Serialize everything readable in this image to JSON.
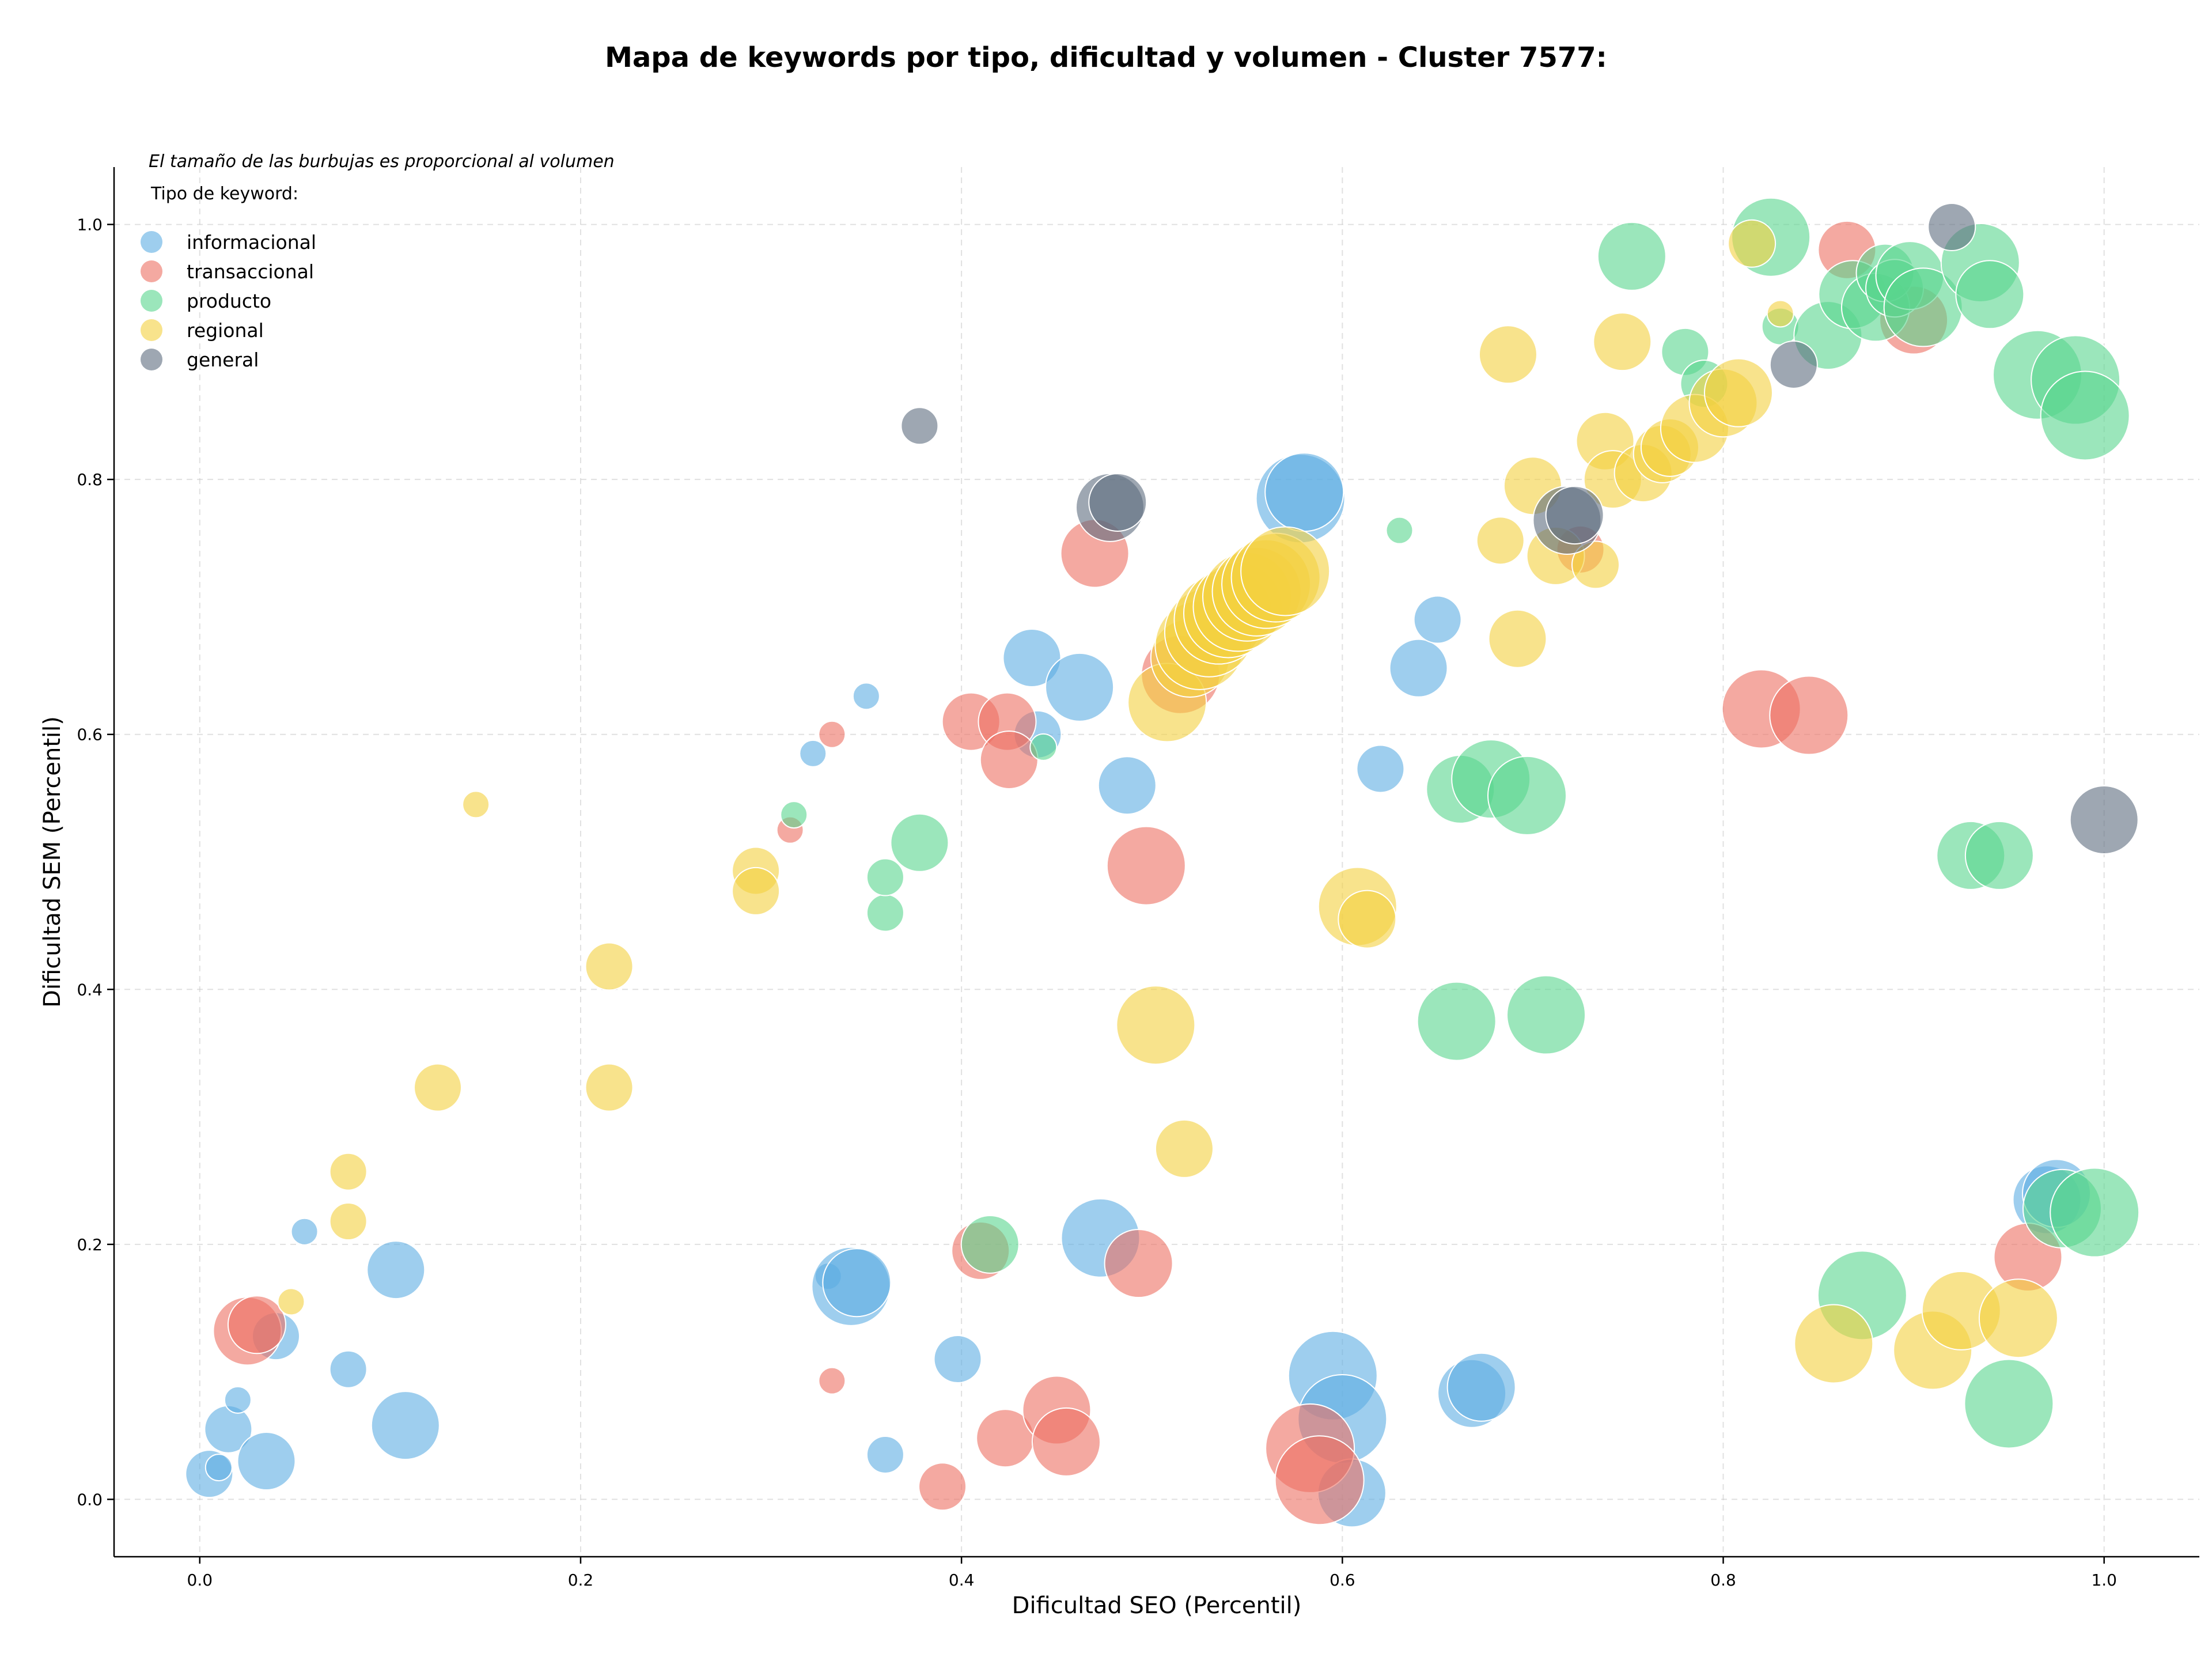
{
  "chart_data": {
    "type": "scatter",
    "title": "Mapa de keywords por tipo, dificultad y volumen - Cluster 7577:",
    "xlabel": "Dificultad SEO (Percentil)",
    "ylabel": "Dificultad SEM (Percentil)",
    "xlim": [
      -0.045,
      1.05
    ],
    "ylim": [
      -0.045,
      1.045
    ],
    "xticks": [
      0.0,
      0.2,
      0.4,
      0.6,
      0.8,
      1.0
    ],
    "yticks": [
      0.0,
      0.2,
      0.4,
      0.6,
      0.8,
      1.0
    ],
    "xtick_labels": [
      "0.0",
      "0.2",
      "0.4",
      "0.6",
      "0.8",
      "1.0"
    ],
    "ytick_labels": [
      "0.0",
      "0.2",
      "0.4",
      "0.6",
      "0.8",
      "1.0"
    ],
    "grid": true,
    "note": "El tamaño de las burbujas es proporcional al volumen",
    "legend": {
      "title": "Tipo de keyword:",
      "placement": "top-left"
    },
    "series": [
      {
        "name": "informacional",
        "color": "#5DADE2",
        "points": [
          [
            0.005,
            0.02,
            3
          ],
          [
            0.01,
            0.025,
            1
          ],
          [
            0.015,
            0.055,
            3
          ],
          [
            0.02,
            0.078,
            1
          ],
          [
            0.035,
            0.03,
            4
          ],
          [
            0.04,
            0.128,
            3
          ],
          [
            0.055,
            0.21,
            1
          ],
          [
            0.078,
            0.102,
            2
          ],
          [
            0.103,
            0.18,
            4
          ],
          [
            0.108,
            0.058,
            5
          ],
          [
            0.322,
            0.585,
            1
          ],
          [
            0.35,
            0.63,
            1
          ],
          [
            0.33,
            0.175,
            1
          ],
          [
            0.342,
            0.167,
            6
          ],
          [
            0.345,
            0.17,
            5
          ],
          [
            0.36,
            0.035,
            2
          ],
          [
            0.398,
            0.11,
            3
          ],
          [
            0.437,
            0.66,
            4
          ],
          [
            0.44,
            0.6,
            3
          ],
          [
            0.462,
            0.637,
            5
          ],
          [
            0.473,
            0.205,
            6
          ],
          [
            0.487,
            0.56,
            4
          ],
          [
            0.578,
            0.785,
            7
          ],
          [
            0.58,
            0.79,
            6
          ],
          [
            0.595,
            0.097,
            7
          ],
          [
            0.6,
            0.063,
            7
          ],
          [
            0.605,
            0.005,
            5
          ],
          [
            0.62,
            0.573,
            3
          ],
          [
            0.64,
            0.652,
            4
          ],
          [
            0.65,
            0.69,
            3
          ],
          [
            0.668,
            0.083,
            5
          ],
          [
            0.673,
            0.088,
            5
          ],
          [
            0.97,
            0.235,
            5
          ],
          [
            0.975,
            0.24,
            5
          ]
        ]
      },
      {
        "name": "transaccional",
        "color": "#EC7063",
        "points": [
          [
            0.025,
            0.132,
            5
          ],
          [
            0.03,
            0.137,
            4
          ],
          [
            0.31,
            0.525,
            1
          ],
          [
            0.332,
            0.093,
            1
          ],
          [
            0.332,
            0.6,
            1
          ],
          [
            0.39,
            0.01,
            3
          ],
          [
            0.405,
            0.61,
            4
          ],
          [
            0.41,
            0.195,
            4
          ],
          [
            0.423,
            0.048,
            4
          ],
          [
            0.424,
            0.61,
            4
          ],
          [
            0.425,
            0.58,
            4
          ],
          [
            0.45,
            0.07,
            5
          ],
          [
            0.455,
            0.045,
            5
          ],
          [
            0.47,
            0.742,
            5
          ],
          [
            0.493,
            0.185,
            5
          ],
          [
            0.497,
            0.497,
            6
          ],
          [
            0.515,
            0.647,
            6
          ],
          [
            0.583,
            0.04,
            7
          ],
          [
            0.588,
            0.015,
            7
          ],
          [
            0.725,
            0.745,
            3
          ],
          [
            0.82,
            0.62,
            6
          ],
          [
            0.845,
            0.615,
            6
          ],
          [
            0.865,
            0.98,
            4
          ],
          [
            0.9,
            0.925,
            5
          ],
          [
            0.96,
            0.19,
            5
          ]
        ]
      },
      {
        "name": "producto",
        "color": "#58D68D",
        "points": [
          [
            0.312,
            0.537,
            1
          ],
          [
            0.36,
            0.46,
            2
          ],
          [
            0.36,
            0.488,
            2
          ],
          [
            0.378,
            0.515,
            4
          ],
          [
            0.443,
            0.59,
            1
          ],
          [
            0.415,
            0.2,
            4
          ],
          [
            0.63,
            0.76,
            1
          ],
          [
            0.66,
            0.375,
            6
          ],
          [
            0.662,
            0.557,
            5
          ],
          [
            0.678,
            0.565,
            6
          ],
          [
            0.697,
            0.552,
            6
          ],
          [
            0.707,
            0.38,
            6
          ],
          [
            0.752,
            0.975,
            5
          ],
          [
            0.78,
            0.9,
            3
          ],
          [
            0.79,
            0.875,
            3
          ],
          [
            0.825,
            0.99,
            6
          ],
          [
            0.83,
            0.92,
            2
          ],
          [
            0.855,
            0.913,
            5
          ],
          [
            0.868,
            0.945,
            5
          ],
          [
            0.873,
            0.16,
            7
          ],
          [
            0.88,
            0.935,
            5
          ],
          [
            0.885,
            0.962,
            4
          ],
          [
            0.89,
            0.95,
            4
          ],
          [
            0.898,
            0.96,
            5
          ],
          [
            0.905,
            0.935,
            6
          ],
          [
            0.93,
            0.505,
            5
          ],
          [
            0.935,
            0.97,
            6
          ],
          [
            0.94,
            0.945,
            5
          ],
          [
            0.945,
            0.505,
            5
          ],
          [
            0.95,
            0.075,
            7
          ],
          [
            0.965,
            0.882,
            7
          ],
          [
            0.978,
            0.228,
            6
          ],
          [
            0.985,
            0.878,
            7
          ],
          [
            0.99,
            0.85,
            7
          ],
          [
            0.995,
            0.225,
            7
          ]
        ]
      },
      {
        "name": "regional",
        "color": "#F4D03F",
        "points": [
          [
            0.048,
            0.155,
            1
          ],
          [
            0.078,
            0.218,
            2
          ],
          [
            0.078,
            0.257,
            2
          ],
          [
            0.125,
            0.323,
            3
          ],
          [
            0.145,
            0.545,
            1
          ],
          [
            0.215,
            0.323,
            3
          ],
          [
            0.215,
            0.418,
            3
          ],
          [
            0.292,
            0.493,
            3
          ],
          [
            0.292,
            0.477,
            3
          ],
          [
            0.502,
            0.372,
            6
          ],
          [
            0.508,
            0.625,
            6
          ],
          [
            0.517,
            0.275,
            4
          ],
          [
            0.52,
            0.66,
            6
          ],
          [
            0.525,
            0.67,
            7
          ],
          [
            0.53,
            0.68,
            7
          ],
          [
            0.535,
            0.69,
            7
          ],
          [
            0.54,
            0.695,
            7
          ],
          [
            0.545,
            0.7,
            7
          ],
          [
            0.55,
            0.708,
            7
          ],
          [
            0.555,
            0.712,
            7
          ],
          [
            0.56,
            0.718,
            7
          ],
          [
            0.565,
            0.723,
            7
          ],
          [
            0.57,
            0.728,
            7
          ],
          [
            0.608,
            0.465,
            6
          ],
          [
            0.613,
            0.455,
            4
          ],
          [
            0.683,
            0.752,
            3
          ],
          [
            0.687,
            0.898,
            4
          ],
          [
            0.692,
            0.675,
            4
          ],
          [
            0.7,
            0.795,
            4
          ],
          [
            0.712,
            0.74,
            4
          ],
          [
            0.733,
            0.733,
            3
          ],
          [
            0.738,
            0.83,
            4
          ],
          [
            0.742,
            0.8,
            4
          ],
          [
            0.747,
            0.908,
            4
          ],
          [
            0.758,
            0.805,
            4
          ],
          [
            0.768,
            0.82,
            4
          ],
          [
            0.772,
            0.825,
            4
          ],
          [
            0.785,
            0.84,
            5
          ],
          [
            0.8,
            0.86,
            5
          ],
          [
            0.808,
            0.868,
            5
          ],
          [
            0.815,
            0.985,
            3
          ],
          [
            0.83,
            0.93,
            1
          ],
          [
            0.858,
            0.122,
            6
          ],
          [
            0.91,
            0.117,
            6
          ],
          [
            0.925,
            0.148,
            6
          ],
          [
            0.955,
            0.142,
            6
          ]
        ]
      },
      {
        "name": "general",
        "color": "#5D6D7E",
        "points": [
          [
            0.378,
            0.842,
            2
          ],
          [
            0.478,
            0.778,
            5
          ],
          [
            0.482,
            0.782,
            4
          ],
          [
            0.718,
            0.768,
            5
          ],
          [
            0.722,
            0.772,
            4
          ],
          [
            0.837,
            0.89,
            3
          ],
          [
            0.92,
            0.998,
            3
          ],
          [
            1.0,
            0.533,
            5
          ]
        ]
      }
    ]
  }
}
